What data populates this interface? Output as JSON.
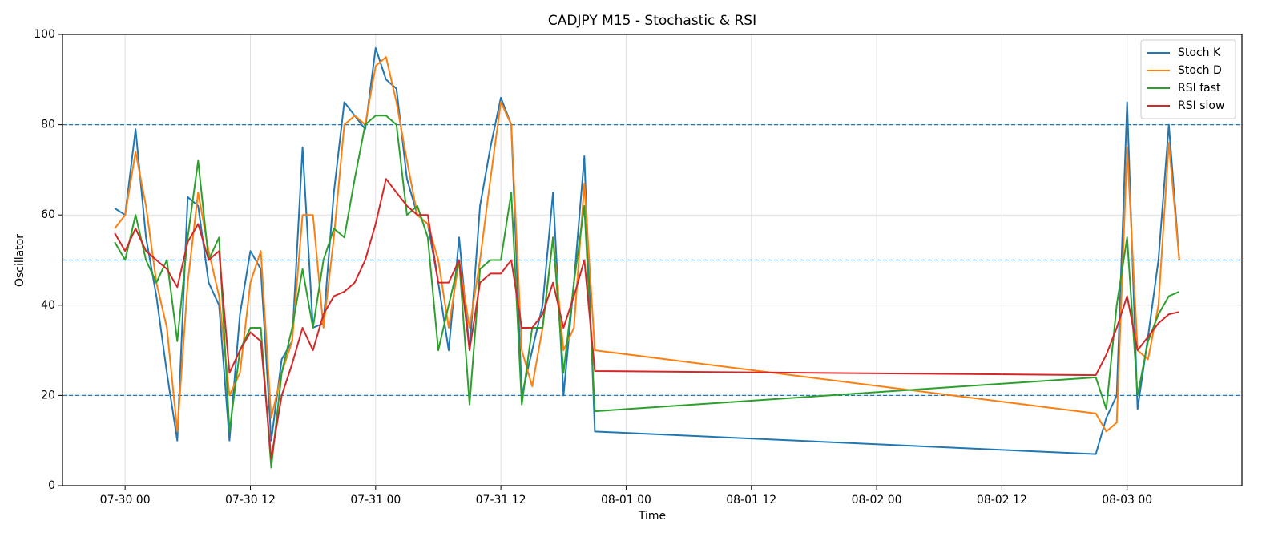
{
  "chart_data": {
    "type": "line",
    "title": "CADJPY M15 - Stochastic & RSI",
    "x_label": "Time",
    "y_label": "Oscillator",
    "x": [
      "07-29 23",
      "07-30 00",
      "07-30 01",
      "07-30 02",
      "07-30 03",
      "07-30 04",
      "07-30 05",
      "07-30 06",
      "07-30 07",
      "07-30 08",
      "07-30 09",
      "07-30 10",
      "07-30 11",
      "07-30 12",
      "07-30 13",
      "07-30 14",
      "07-30 15",
      "07-30 16",
      "07-30 17",
      "07-30 18",
      "07-30 19",
      "07-30 20",
      "07-30 21",
      "07-30 22",
      "07-30 23",
      "07-31 00",
      "07-31 01",
      "07-31 02",
      "07-31 03",
      "07-31 04",
      "07-31 05",
      "07-31 06",
      "07-31 07",
      "07-31 08",
      "07-31 09",
      "07-31 10",
      "07-31 11",
      "07-31 12",
      "07-31 13",
      "07-31 14",
      "07-31 15",
      "07-31 16",
      "07-31 17",
      "07-31 18",
      "07-31 19",
      "07-31 20",
      "07-31 21",
      "08-02 21",
      "08-02 22",
      "08-02 23",
      "08-03 00",
      "08-03 01",
      "08-03 02",
      "08-03 03",
      "08-03 04",
      "08-03 05"
    ],
    "series": [
      {
        "name": "Stoch K",
        "color": "#1f77b4",
        "values": [
          61.5,
          60,
          79,
          55,
          42,
          25,
          10,
          64,
          62,
          45,
          40,
          10,
          38,
          52,
          48,
          10,
          28,
          32,
          75,
          35,
          36,
          65,
          85,
          82,
          79,
          97,
          90,
          88,
          68,
          60,
          58,
          45,
          30,
          55,
          30,
          62,
          75,
          86,
          80,
          20,
          30,
          40,
          65,
          20,
          45,
          73,
          12,
          7,
          15,
          20,
          85,
          17,
          33,
          50,
          80,
          50
        ]
      },
      {
        "name": "Stoch D",
        "color": "#ff7f0e",
        "values": [
          57,
          60,
          74,
          62,
          45,
          35,
          12,
          45,
          65,
          52,
          42,
          20,
          25,
          45,
          52,
          15,
          25,
          32,
          60,
          60,
          35,
          55,
          80,
          82,
          80,
          93,
          95,
          85,
          72,
          60,
          58,
          50,
          35,
          50,
          35,
          50,
          68,
          85,
          80,
          30,
          22,
          35,
          55,
          30,
          35,
          67,
          30,
          16,
          12,
          14,
          75,
          30,
          28,
          40,
          76,
          50
        ]
      },
      {
        "name": "RSI fast",
        "color": "#2ca02c",
        "values": [
          54,
          50,
          60,
          50,
          45,
          50,
          32,
          55,
          72,
          50,
          55,
          12,
          30,
          35,
          35,
          4,
          25,
          35,
          48,
          35,
          50,
          57,
          55,
          68,
          80,
          82,
          82,
          80,
          60,
          62,
          55,
          30,
          40,
          50,
          18,
          48,
          50,
          50,
          65,
          18,
          35,
          35,
          55,
          25,
          45,
          62,
          16.5,
          24,
          17,
          40,
          55,
          20,
          32,
          38,
          42,
          43
        ]
      },
      {
        "name": "RSI slow",
        "color": "#d62728",
        "values": [
          56,
          52,
          57,
          52,
          50,
          48,
          44,
          54,
          58,
          50,
          52,
          25,
          30,
          34,
          32,
          6,
          20,
          27,
          35,
          30,
          38,
          42,
          43,
          45,
          50,
          58,
          68,
          65,
          62,
          60,
          60,
          45,
          45,
          50,
          30,
          45,
          47,
          47,
          50,
          35,
          35,
          38,
          45,
          35,
          42,
          50,
          25.4,
          24.5,
          29,
          35,
          42,
          30,
          33,
          36,
          38,
          38.5
        ]
      }
    ],
    "hlines": [
      20,
      50,
      80
    ],
    "hline_color": "#1f77b4",
    "xlim": [
      "07-29 18",
      "08-03 11"
    ],
    "xticks": [
      "07-30 00",
      "07-30 12",
      "07-31 00",
      "07-31 12",
      "08-01 00",
      "08-01 12",
      "08-02 00",
      "08-02 12",
      "08-03 00"
    ],
    "ylim": [
      0,
      100
    ],
    "yticks": [
      0,
      20,
      40,
      60,
      80,
      100
    ],
    "grid": true,
    "legend": "upper right"
  }
}
